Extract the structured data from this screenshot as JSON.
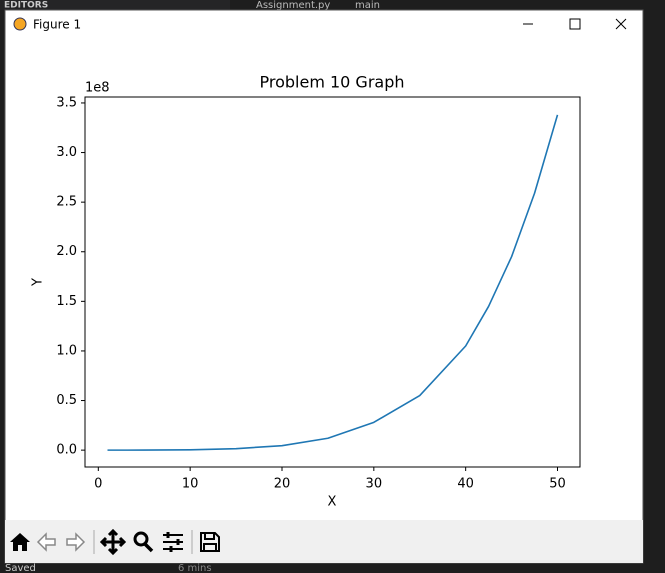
{
  "editor": {
    "panel_title": "EDITORS",
    "file_tab": "Assignment.py",
    "symbol": "main",
    "status_left": "Saved",
    "status_right": "6 mins"
  },
  "window": {
    "title": "Figure 1"
  },
  "chart_data": {
    "type": "line",
    "title": "Problem 10 Graph",
    "x_label": "X",
    "y_label": "Y",
    "y_offset_label": "1e8",
    "x": [
      1,
      5,
      10,
      15,
      20,
      25,
      30,
      35,
      40,
      42.5,
      45,
      47.5,
      50
    ],
    "series": [
      {
        "color": "#1f77b4",
        "values": [
          0,
          0.0003,
          0.003,
          0.015,
          0.045,
          0.12,
          0.28,
          0.55,
          1.05,
          1.45,
          1.95,
          2.59,
          3.38
        ]
      }
    ],
    "xlim": [
      -1.45,
      52.45
    ],
    "ylim": [
      -0.17,
      3.56
    ],
    "xticks": [
      0,
      10,
      20,
      30,
      40,
      50
    ],
    "yticks": [
      {
        "value": 0,
        "label": "0.0"
      },
      0.5,
      {
        "value": 1,
        "label": "1.0"
      },
      1.5,
      {
        "value": 2,
        "label": "2.0"
      },
      2.5,
      {
        "value": 3,
        "label": "3.0"
      },
      3.5
    ],
    "grid": false
  }
}
